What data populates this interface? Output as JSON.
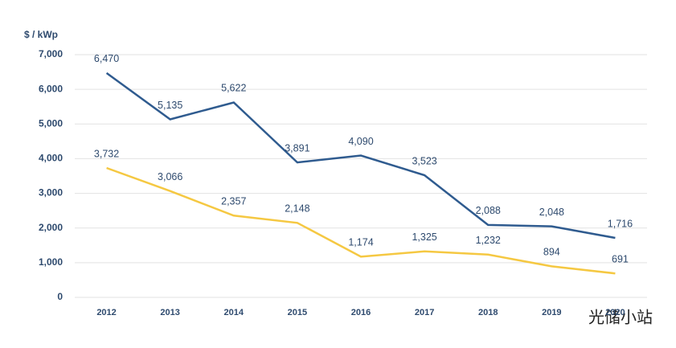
{
  "chart_data": {
    "type": "line",
    "y_label": "$ / kWp",
    "categories": [
      "2012",
      "2013",
      "2014",
      "2015",
      "2016",
      "2017",
      "2018",
      "2019",
      "2020"
    ],
    "series": [
      {
        "color": "#2f5b8f",
        "values": [
          6470,
          5135,
          5622,
          3891,
          4090,
          3523,
          2088,
          2048,
          1716
        ],
        "value_labels": [
          "6,470",
          "5,135",
          "5,622",
          "3,891",
          "4,090",
          "3,523",
          "2,088",
          "2,048",
          "1,716"
        ]
      },
      {
        "color": "#f5c842",
        "values": [
          3732,
          3066,
          2357,
          2148,
          1174,
          1325,
          1232,
          894,
          691
        ],
        "value_labels": [
          "3,732",
          "3,066",
          "2,357",
          "2,148",
          "1,174",
          "1,325",
          "1,232",
          "894",
          "691"
        ]
      }
    ],
    "ylim": [
      0,
      7000
    ],
    "yticks": [
      0,
      {
        "value": 1000,
        "label": "1,000"
      },
      {
        "value": 2000,
        "label": "2,000"
      },
      {
        "value": 3000,
        "label": "3,000"
      },
      {
        "value": 4000,
        "label": "4,000"
      },
      {
        "value": 5000,
        "label": "5,000"
      },
      {
        "value": 6000,
        "label": "6,000"
      },
      {
        "value": 7000,
        "label": "7,000"
      }
    ],
    "grid": true
  },
  "watermark": "光储小站"
}
